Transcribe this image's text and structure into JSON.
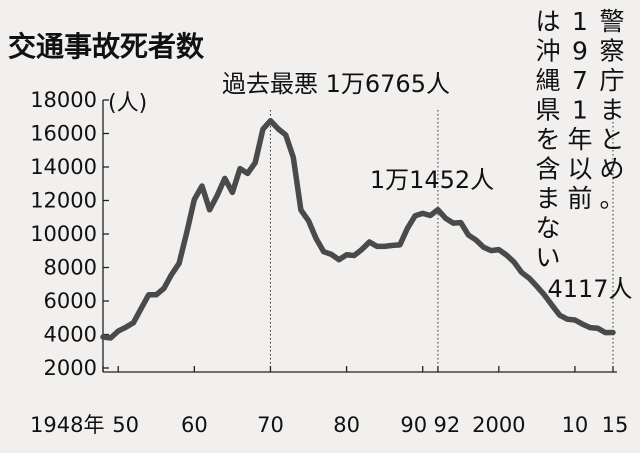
{
  "chart_data": {
    "type": "line",
    "title": "交通事故死者数",
    "y_unit": "(人)",
    "source_note": "警察庁まとめ。1971年以前は沖縄県を含まない",
    "ylim": [
      2000,
      18000
    ],
    "y_ticks": [
      2000,
      4000,
      6000,
      8000,
      10000,
      12000,
      14000,
      16000,
      18000
    ],
    "x_range": [
      1948,
      2015
    ],
    "x_ticks": [
      {
        "value": 1948,
        "label": "1948年"
      },
      {
        "value": 1950,
        "label": "50"
      },
      {
        "value": 1960,
        "label": "60"
      },
      {
        "value": 1970,
        "label": "70"
      },
      {
        "value": 1980,
        "label": "80"
      },
      {
        "value": 1990,
        "label": "90"
      },
      {
        "value": 1992,
        "label": "92"
      },
      {
        "value": 2000,
        "label": "2000"
      },
      {
        "value": 2010,
        "label": "10"
      },
      {
        "value": 2015,
        "label": "15"
      }
    ],
    "reference_lines": [
      1970,
      1992,
      2015
    ],
    "annotations": [
      {
        "x": 1970,
        "text": "過去最悪 1万6765人"
      },
      {
        "x": 1992,
        "text": "1万1452人"
      },
      {
        "x": 2015,
        "text": "4117人"
      }
    ],
    "series": [
      {
        "x": [
          1948,
          1949,
          1950,
          1951,
          1952,
          1953,
          1954,
          1955,
          1956,
          1957,
          1958,
          1959,
          1960,
          1961,
          1962,
          1963,
          1964,
          1965,
          1966,
          1967,
          1968,
          1969,
          1970,
          1971,
          1972,
          1973,
          1974,
          1975,
          1976,
          1977,
          1978,
          1979,
          1980,
          1981,
          1982,
          1983,
          1984,
          1985,
          1986,
          1987,
          1988,
          1989,
          1990,
          1991,
          1992,
          1993,
          1994,
          1995,
          1996,
          1997,
          1998,
          1999,
          2000,
          2001,
          2002,
          2003,
          2004,
          2005,
          2006,
          2007,
          2008,
          2009,
          2010,
          2011,
          2012,
          2013,
          2014,
          2015
        ],
        "values": [
          3848,
          3790,
          4202,
          4429,
          4696,
          5544,
          6374,
          6379,
          6751,
          7575,
          8248,
          10079,
          12055,
          12865,
          11445,
          12301,
          13318,
          12484,
          13904,
          13618,
          14256,
          16257,
          16765,
          16278,
          15918,
          14574,
          11432,
          10792,
          9734,
          8945,
          8783,
          8466,
          8760,
          8719,
          9073,
          9520,
          9262,
          9261,
          9317,
          9347,
          10344,
          11086,
          11227,
          11105,
          11452,
          10942,
          10649,
          10679,
          9942,
          9640,
          9211,
          9006,
          9066,
          8747,
          8326,
          7702,
          7358,
          6871,
          6352,
          5744,
          5155,
          4914,
          4863,
          4612,
          4411,
          4373,
          4113,
          4117
        ]
      }
    ]
  }
}
